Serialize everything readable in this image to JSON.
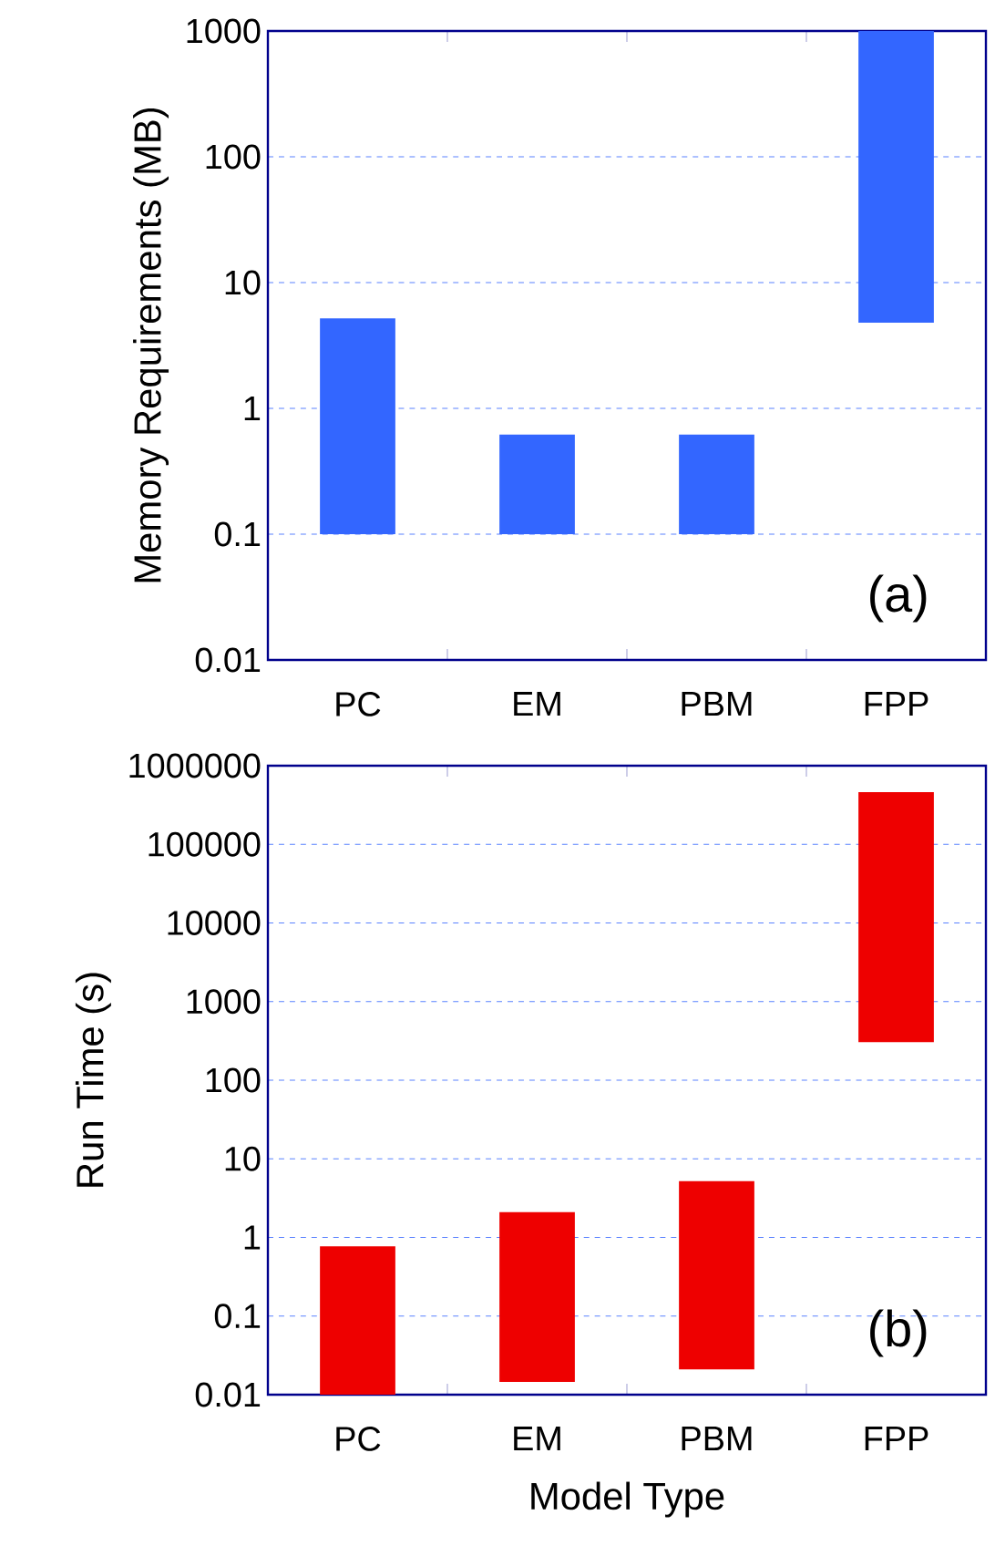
{
  "chart_data": [
    {
      "type": "bar",
      "ylabel": "Memory Requirements (MB)",
      "categories": [
        "PC",
        "EM",
        "PBM",
        "FPP"
      ],
      "base": [
        0.1,
        0.1,
        0.1,
        4.8
      ],
      "values": [
        5.1,
        0.52,
        0.52,
        995.2
      ],
      "color": "#3366ff",
      "log": true,
      "ylim": [
        0.01,
        1000
      ],
      "yticks": [
        0.01,
        0.1,
        1,
        10,
        100,
        1000
      ],
      "grid": "y",
      "annotations": [
        "(a)"
      ]
    },
    {
      "type": "bar",
      "ylabel": "Run Time (s)",
      "xlabel": "Model Type",
      "categories": [
        "PC",
        "EM",
        "PBM",
        "FPP"
      ],
      "base": [
        0.01,
        0.0145,
        0.021,
        305
      ],
      "values": [
        0.76,
        2.0855,
        5.179,
        459695
      ],
      "color": "#ee0000",
      "log": true,
      "ylim": [
        0.01,
        1000000
      ],
      "yticks": [
        0.01,
        0.1,
        1,
        10,
        100,
        1000,
        10000,
        100000,
        1000000
      ],
      "grid": "y",
      "annotations": [
        "(b)"
      ]
    }
  ]
}
